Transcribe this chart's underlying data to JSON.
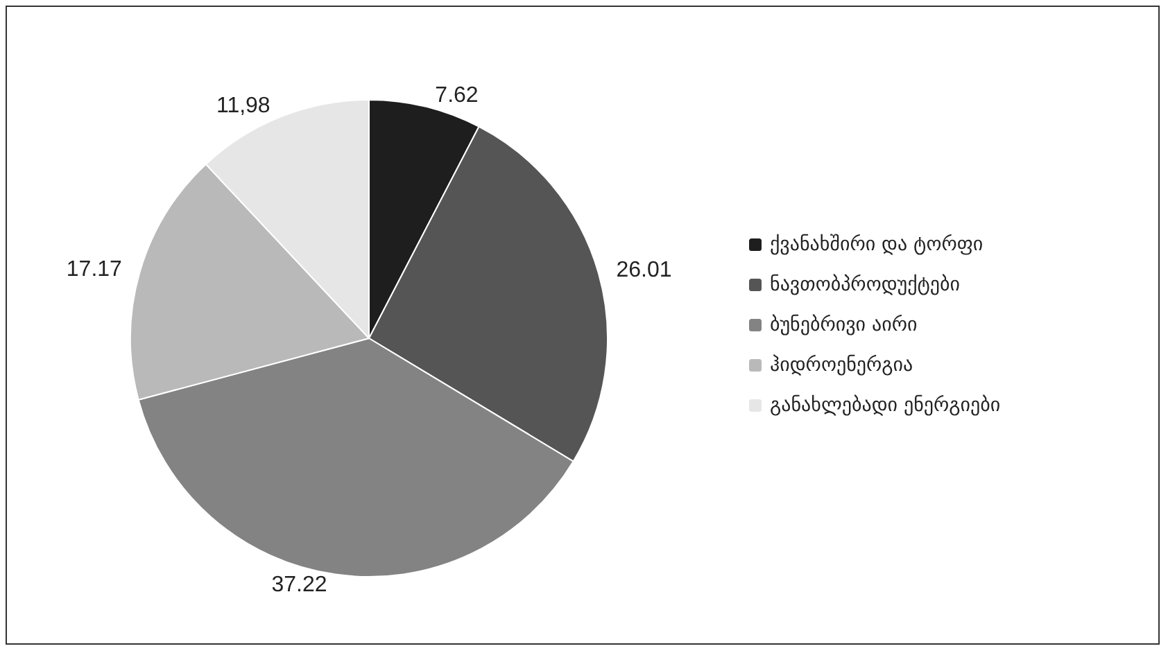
{
  "chart_data": {
    "type": "pie",
    "categories": [
      "ქვანახშირი და ტორფი",
      "ნავთობპროდუქტები",
      "ბუნებრივი აირი",
      "ჰიდროენერგია",
      "განახლებადი ენერგიები"
    ],
    "values": [
      7.62,
      26.01,
      37.22,
      17.17,
      11.98
    ],
    "value_labels": [
      "7.62",
      "26.01",
      "37.22",
      "17.17",
      "11,98"
    ],
    "colors": [
      "#1e1e1e",
      "#555555",
      "#838383",
      "#b9b9b9",
      "#e6e6e6"
    ],
    "legend": "right"
  }
}
